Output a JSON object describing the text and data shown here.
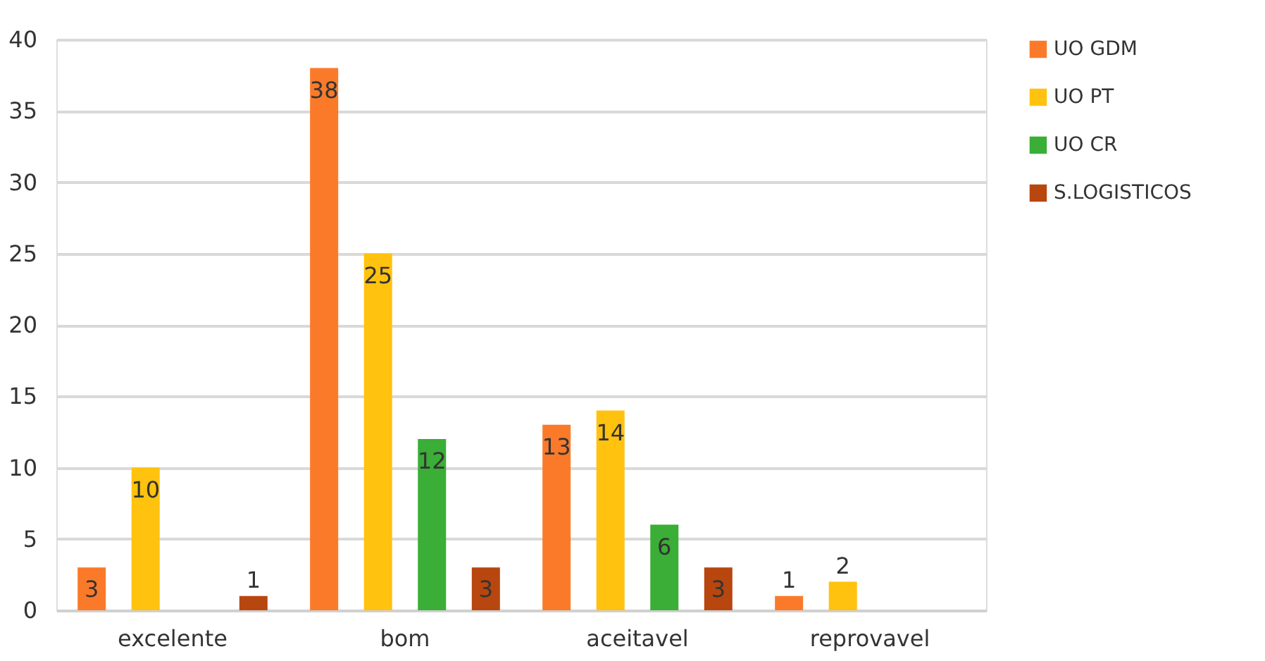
{
  "chart_data": {
    "type": "bar",
    "categories": [
      "excelente",
      "bom",
      "aceitavel",
      "reprovavel"
    ],
    "series": [
      {
        "name": "UO GDM",
        "color": "#fa7a2a",
        "values": [
          3,
          38,
          13,
          1
        ]
      },
      {
        "name": "UO PT",
        "color": "#ffc20e",
        "values": [
          10,
          25,
          14,
          2
        ]
      },
      {
        "name": "UO CR",
        "color": "#3aae36",
        "values": [
          null,
          12,
          6,
          null
        ]
      },
      {
        "name": "S.LOGISTICOS",
        "color": "#b8460f",
        "values": [
          1,
          3,
          3,
          null
        ]
      }
    ],
    "ylim": [
      0,
      40
    ],
    "yticks": [
      0,
      5,
      10,
      15,
      20,
      25,
      30,
      35,
      40
    ],
    "grid": "y",
    "legend": "right",
    "data_labels": true
  }
}
